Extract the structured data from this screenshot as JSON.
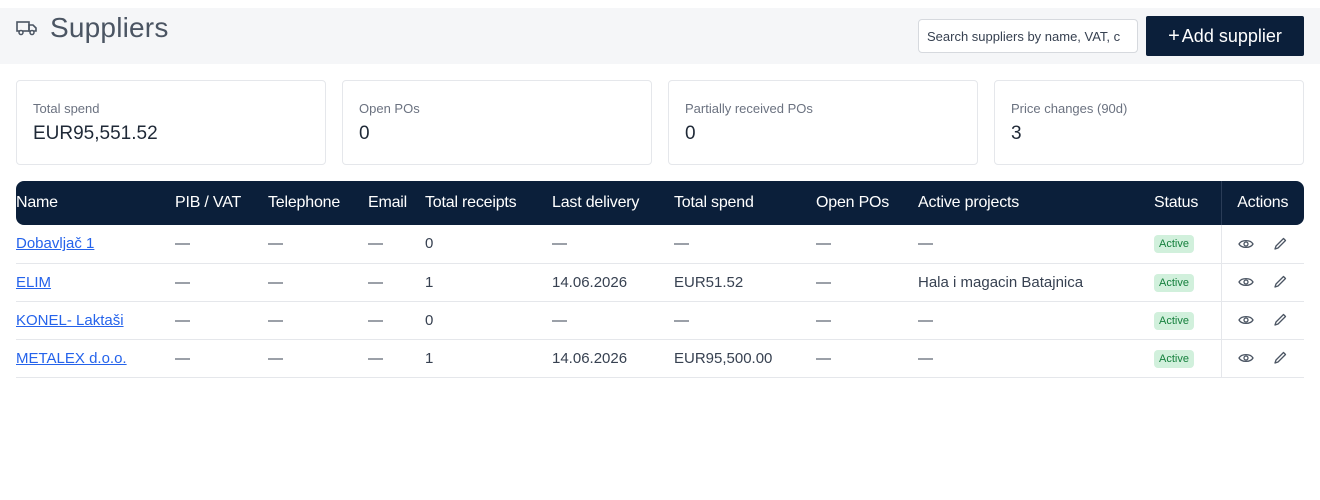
{
  "header": {
    "title": "Suppliers",
    "title_icon": "truck-icon",
    "search_placeholder": "Search suppliers by name, VAT, c",
    "add_button_label": "Add supplier"
  },
  "stats": [
    {
      "label": "Total spend",
      "value": "EUR95,551.52"
    },
    {
      "label": "Open POs",
      "value": "0"
    },
    {
      "label": "Partially received POs",
      "value": "0"
    },
    {
      "label": "Price changes (90d)",
      "value": "3"
    }
  ],
  "table": {
    "columns": [
      "Name",
      "PIB / VAT",
      "Telephone",
      "Email",
      "Total receipts",
      "Last delivery",
      "Total spend",
      "Open POs",
      "Active projects",
      "Status",
      "Actions"
    ],
    "rows": [
      {
        "name": "Dobavljač 1",
        "vat": "—",
        "telephone": "—",
        "email": "—",
        "total_receipts": "0",
        "last_delivery": "—",
        "total_spend": "—",
        "open_pos": "—",
        "active_projects": "—",
        "status": "Active"
      },
      {
        "name": "ELIM",
        "vat": "—",
        "telephone": "—",
        "email": "—",
        "total_receipts": "1",
        "last_delivery": "14.06.2026",
        "total_spend": "EUR51.52",
        "open_pos": "—",
        "active_projects": "Hala i magacin Batajnica",
        "status": "Active"
      },
      {
        "name": "KONEL- Laktaši",
        "vat": "—",
        "telephone": "—",
        "email": "—",
        "total_receipts": "0",
        "last_delivery": "—",
        "total_spend": "—",
        "open_pos": "—",
        "active_projects": "—",
        "status": "Active"
      },
      {
        "name": "METALEX d.o.o.",
        "vat": "—",
        "telephone": "—",
        "email": "—",
        "total_receipts": "1",
        "last_delivery": "14.06.2026",
        "total_spend": "EUR95,500.00",
        "open_pos": "—",
        "active_projects": "—",
        "status": "Active"
      }
    ],
    "action_icons": [
      "eye-icon",
      "pencil-icon"
    ]
  },
  "colors": {
    "header_bg": "#0b1f3a",
    "link": "#2563eb",
    "badge_bg": "#d1f0dc",
    "badge_text": "#15803d"
  }
}
